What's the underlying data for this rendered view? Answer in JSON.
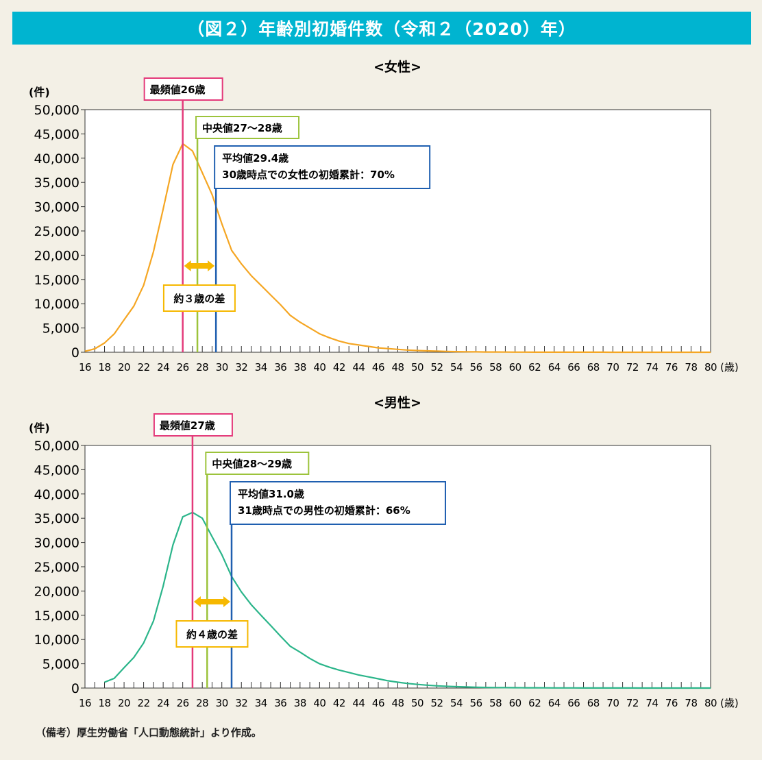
{
  "title": "（図２）年齢別初婚件数（令和２（2020）年）",
  "note": "（備考）厚生労働省「人口動態統計」より作成。",
  "colors": {
    "header": "#00b4d0",
    "mode": "#e4397a",
    "median": "#9cc33b",
    "mean": "#1f5fb0",
    "diff": "#f6b800",
    "female_line": "#f5a623",
    "male_line": "#2bb58a"
  },
  "chart_data": [
    {
      "type": "line",
      "title": "<女性>",
      "ylabel": "(件)",
      "xlabel": "(歳)",
      "ylim": [
        0,
        50000
      ],
      "xlim": [
        16,
        80
      ],
      "yticks": [
        "0",
        "5,000",
        "10,000",
        "15,000",
        "20,000",
        "25,000",
        "30,000",
        "35,000",
        "40,000",
        "45,000",
        "50,000"
      ],
      "xticks": [
        "16",
        "18",
        "20",
        "22",
        "24",
        "26",
        "28",
        "30",
        "32",
        "34",
        "36",
        "38",
        "40",
        "42",
        "44",
        "46",
        "48",
        "50",
        "52",
        "54",
        "56",
        "58",
        "60",
        "62",
        "64",
        "66",
        "68",
        "70",
        "72",
        "74",
        "76",
        "78",
        "80"
      ],
      "series": [
        {
          "color": "#f5a623",
          "x": [
            16,
            17,
            18,
            19,
            20,
            21,
            22,
            23,
            24,
            25,
            26,
            27,
            28,
            29,
            30,
            31,
            32,
            33,
            34,
            35,
            36,
            37,
            38,
            39,
            40,
            41,
            42,
            43,
            44,
            45,
            46,
            47,
            48,
            49,
            50,
            51,
            52,
            53,
            54,
            55,
            56,
            57,
            58,
            59,
            60,
            61,
            62,
            63,
            64,
            65,
            66,
            67,
            68,
            69,
            70,
            71,
            72,
            73,
            74,
            75,
            76,
            77,
            78,
            79,
            80
          ],
          "y": [
            200,
            700,
            1900,
            3800,
            6700,
            9500,
            13800,
            20700,
            29500,
            38700,
            43000,
            41500,
            37000,
            32500,
            26500,
            21000,
            18200,
            15800,
            13800,
            11800,
            9800,
            7600,
            6200,
            5000,
            3800,
            3000,
            2300,
            1800,
            1500,
            1200,
            900,
            750,
            600,
            450,
            350,
            280,
            220,
            170,
            130,
            100,
            80,
            60,
            50,
            40,
            30,
            25,
            20,
            18,
            15,
            12,
            10,
            10,
            8,
            8,
            6,
            6,
            5,
            5,
            4,
            4,
            3,
            3,
            2,
            2,
            2
          ]
        }
      ],
      "annotations": {
        "mode": {
          "age": 26,
          "label": "最頻値26歳"
        },
        "median": {
          "age": 27.5,
          "label": "中央値27～28歳"
        },
        "mean": {
          "age": 29.4,
          "label_line1": "平均値29.4歳",
          "label_line2": "30歳時点での女性の初婚累計：70%"
        },
        "diff": {
          "label": "約３歳の差"
        }
      }
    },
    {
      "type": "line",
      "title": "<男性>",
      "ylabel": "(件)",
      "xlabel": "(歳)",
      "ylim": [
        0,
        50000
      ],
      "xlim": [
        16,
        80
      ],
      "yticks": [
        "0",
        "5,000",
        "10,000",
        "15,000",
        "20,000",
        "25,000",
        "30,000",
        "35,000",
        "40,000",
        "45,000",
        "50,000"
      ],
      "xticks": [
        "16",
        "18",
        "20",
        "22",
        "24",
        "26",
        "28",
        "30",
        "32",
        "34",
        "36",
        "38",
        "40",
        "42",
        "44",
        "46",
        "48",
        "50",
        "52",
        "54",
        "56",
        "58",
        "60",
        "62",
        "64",
        "66",
        "68",
        "70",
        "72",
        "74",
        "76",
        "78",
        "80"
      ],
      "series": [
        {
          "color": "#2bb58a",
          "x": [
            18,
            19,
            20,
            21,
            22,
            23,
            24,
            25,
            26,
            27,
            28,
            29,
            30,
            31,
            32,
            33,
            34,
            35,
            36,
            37,
            38,
            39,
            40,
            41,
            42,
            43,
            44,
            45,
            46,
            47,
            48,
            49,
            50,
            51,
            52,
            53,
            54,
            55,
            56,
            57,
            58,
            59,
            60,
            61,
            62,
            63,
            64,
            65,
            66,
            67,
            68,
            69,
            70,
            71,
            72,
            73,
            74,
            75,
            76,
            77,
            78,
            79,
            80
          ],
          "y": [
            1200,
            2000,
            4200,
            6300,
            9300,
            13800,
            21000,
            29500,
            35300,
            36200,
            35000,
            31200,
            27500,
            23000,
            19800,
            17200,
            15000,
            12900,
            10700,
            8600,
            7400,
            6100,
            5000,
            4300,
            3700,
            3200,
            2700,
            2300,
            1900,
            1500,
            1200,
            950,
            750,
            600,
            450,
            350,
            280,
            220,
            170,
            130,
            100,
            80,
            70,
            60,
            50,
            40,
            35,
            30,
            25,
            20,
            18,
            15,
            12,
            10,
            8,
            7,
            6,
            5,
            4,
            3,
            3,
            2,
            2
          ]
        }
      ],
      "annotations": {
        "mode": {
          "age": 27,
          "label": "最頻値27歳"
        },
        "median": {
          "age": 28.5,
          "label": "中央値28～29歳"
        },
        "mean": {
          "age": 31.0,
          "label_line1": "平均値31.0歳",
          "label_line2": "31歳時点での男性の初婚累計：66%"
        },
        "diff": {
          "label": "約４歳の差"
        }
      }
    }
  ]
}
